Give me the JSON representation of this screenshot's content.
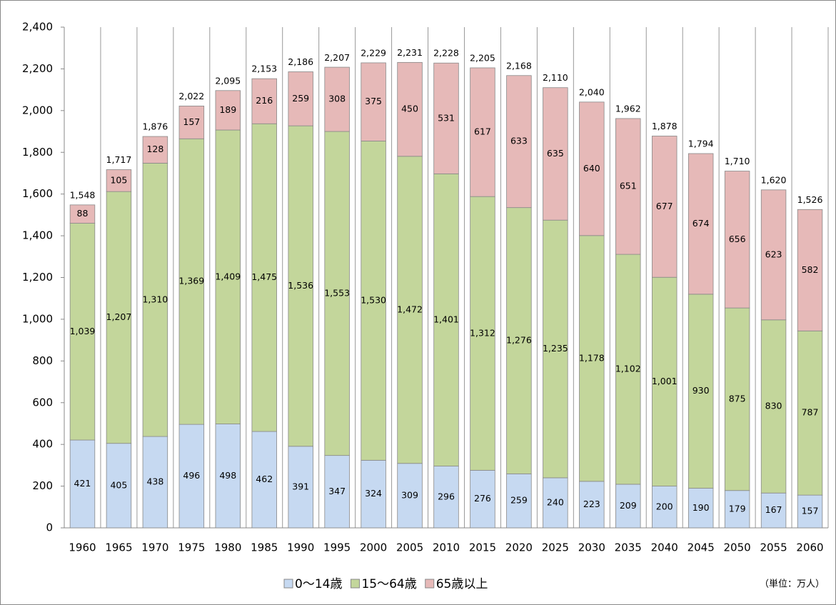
{
  "chart_data": {
    "type": "stacked_bar",
    "categories": [
      "1960",
      "1965",
      "1970",
      "1975",
      "1980",
      "1985",
      "1990",
      "1995",
      "2000",
      "2005",
      "2010",
      "2015",
      "2020",
      "2025",
      "2030",
      "2035",
      "2040",
      "2045",
      "2050",
      "2055",
      "2060"
    ],
    "series": [
      {
        "name": "0～14歳",
        "color": "#c6d9f1",
        "values": [
          421,
          405,
          438,
          496,
          498,
          462,
          391,
          347,
          324,
          309,
          296,
          276,
          259,
          240,
          223,
          209,
          200,
          190,
          179,
          167,
          157
        ]
      },
      {
        "name": "15～64歳",
        "color": "#c3d69b",
        "values": [
          1039,
          1207,
          1310,
          1369,
          1409,
          1475,
          1536,
          1553,
          1530,
          1472,
          1401,
          1312,
          1276,
          1235,
          1178,
          1102,
          1001,
          930,
          875,
          830,
          787
        ],
        "value_labels": [
          "1,039",
          "1,207",
          "1,310",
          "1,369",
          "1,409",
          "1,475",
          "1,536",
          "1,553",
          "1,530",
          "1,472",
          "1,401",
          "1,312",
          "1,276",
          "1,235",
          "1,178",
          "1,102",
          "1,001",
          "930",
          "875",
          "830",
          "787"
        ]
      },
      {
        "name": "65歳以上",
        "color": "#e6b9b8",
        "values": [
          88,
          105,
          128,
          157,
          189,
          216,
          259,
          308,
          375,
          450,
          531,
          617,
          633,
          635,
          640,
          651,
          677,
          674,
          656,
          623,
          582
        ]
      }
    ],
    "totals": [
      {
        "value": 1548,
        "label": "1,548"
      },
      {
        "value": 1717,
        "label": "1,717"
      },
      {
        "value": 1876,
        "label": "1,876"
      },
      {
        "value": 2022,
        "label": "2,022"
      },
      {
        "value": 2095,
        "label": "2,095"
      },
      {
        "value": 2153,
        "label": "2,153"
      },
      {
        "value": 2186,
        "label": "2,186"
      },
      {
        "value": 2207,
        "label": "2,207"
      },
      {
        "value": 2229,
        "label": "2,229"
      },
      {
        "value": 2231,
        "label": "2,231"
      },
      {
        "value": 2228,
        "label": "2,228"
      },
      {
        "value": 2205,
        "label": "2,205"
      },
      {
        "value": 2168,
        "label": "2,168"
      },
      {
        "value": 2110,
        "label": "2,110"
      },
      {
        "value": 2040,
        "label": "2,040"
      },
      {
        "value": 1962,
        "label": "1,962"
      },
      {
        "value": 1878,
        "label": "1,878"
      },
      {
        "value": 1794,
        "label": "1,794"
      },
      {
        "value": 1710,
        "label": "1,710"
      },
      {
        "value": 1620,
        "label": "1,620"
      },
      {
        "value": 1526,
        "label": "1,526"
      }
    ],
    "ylim": [
      0,
      2400
    ],
    "yticks": [
      0,
      200,
      400,
      600,
      800,
      {
        "value": 1000,
        "label": "1,000"
      },
      {
        "value": 1200,
        "label": "1,200"
      },
      {
        "value": 1400,
        "label": "1,400"
      },
      {
        "value": 1600,
        "label": "1,600"
      },
      {
        "value": 1800,
        "label": "1,800"
      },
      {
        "value": 2000,
        "label": "2,000"
      },
      {
        "value": 2200,
        "label": "2,200"
      },
      {
        "value": 2400,
        "label": "2,400"
      }
    ],
    "unit_note": "（単位：万人）"
  }
}
